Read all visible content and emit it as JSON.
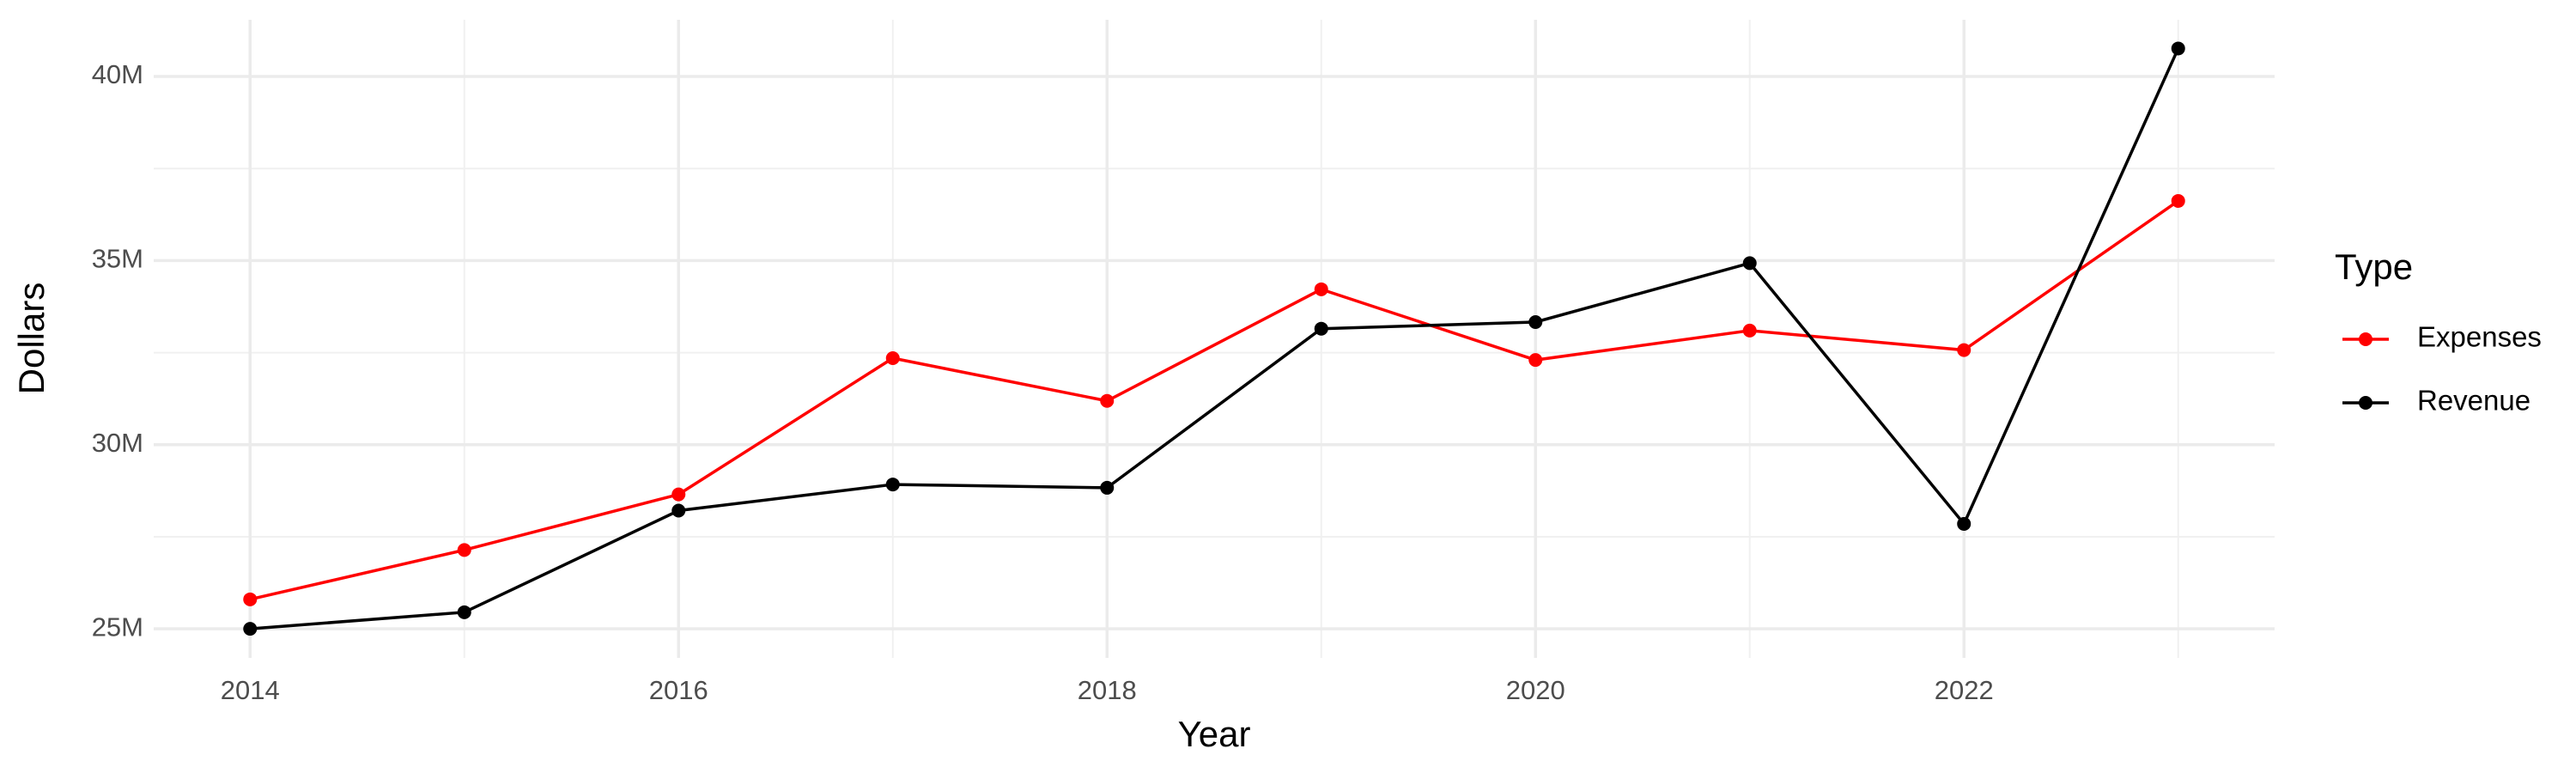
{
  "chart_data": {
    "type": "line",
    "x_label": "Year",
    "y_label": "Dollars",
    "legend_title": "Type",
    "legend_position": "right",
    "grid": true,
    "x": [
      2014,
      2015,
      2016,
      2017,
      2018,
      2019,
      2020,
      2021,
      2022,
      2023
    ],
    "series": [
      {
        "name": "Expenses",
        "color": "#ff0000",
        "values": [
          25800000,
          27140000,
          28650000,
          32350000,
          31190000,
          34220000,
          32300000,
          33100000,
          32570000,
          36620000
        ]
      },
      {
        "name": "Revenue",
        "color": "#000000",
        "values": [
          25000000,
          25450000,
          28210000,
          28920000,
          28830000,
          33150000,
          33330000,
          34930000,
          27850000,
          40760000
        ]
      }
    ],
    "xlim": [
      2013.55,
      2023.45
    ],
    "xticks": [
      2014,
      2016,
      2018,
      2020,
      2022
    ],
    "ylim": [
      24210000,
      41540000
    ],
    "yticks": [
      {
        "value": 25000000,
        "label": "25M"
      },
      {
        "value": 30000000,
        "label": "30M"
      },
      {
        "value": 35000000,
        "label": "35M"
      },
      {
        "value": 40000000,
        "label": "40M"
      }
    ]
  }
}
